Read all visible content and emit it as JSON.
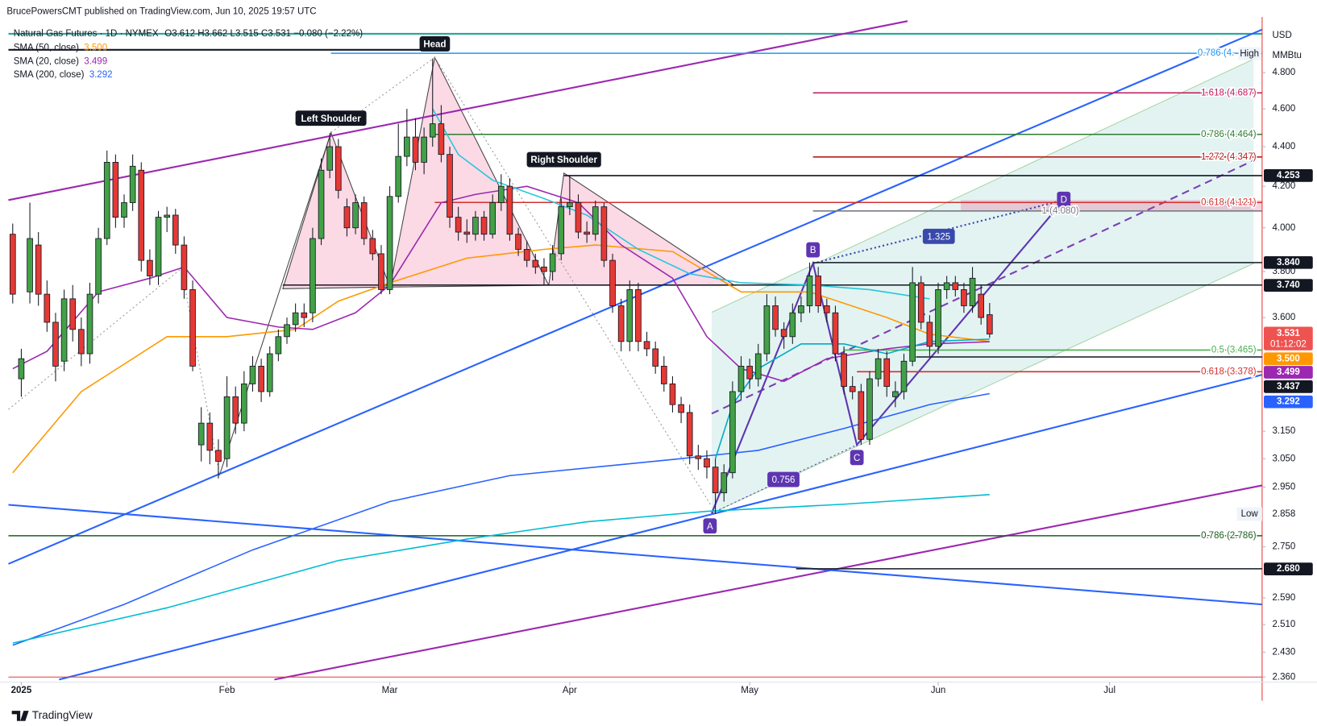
{
  "header": "BrucePowersCMT published on TradingView.com, Jun 10, 2025 19:57 UTC",
  "footer": "TradingView",
  "chart_data": {
    "type": "candlestick",
    "title": "Natural Gas Futures · 1D · NYMEX",
    "subtitle": "O3.612 H3.662 L3.515 C3.531 −0.080 (−2.22%)",
    "currency": "USD",
    "unit": "MMBtu",
    "log_scale": true,
    "grid": false,
    "legend": "top-left",
    "up_color": "#43a047",
    "down_color": "#e53935",
    "xlim": [
      -0.5,
      145.8
    ],
    "xticks": [
      {
        "value": 1,
        "label": "2025"
      },
      {
        "value": 25,
        "label": "Feb"
      },
      {
        "value": 44,
        "label": "Mar"
      },
      {
        "value": 65,
        "label": "Apr"
      },
      {
        "value": 86,
        "label": "May"
      },
      {
        "value": 108,
        "label": "Jun"
      },
      {
        "value": 128,
        "label": "Jul"
      }
    ],
    "ylim": [
      2.353,
      5.074
    ],
    "yticks": [
      {
        "value": 4.8,
        "label": "4.800"
      },
      {
        "value": 4.6,
        "label": "4.600"
      },
      {
        "value": 4.4,
        "label": "4.400"
      },
      {
        "value": 4.2,
        "label": "4.200"
      },
      {
        "value": 4,
        "label": "4.000"
      },
      {
        "value": 3.8,
        "label": "3.800"
      },
      {
        "value": 3.6,
        "label": "3.600"
      },
      {
        "value": 3.15,
        "label": "3.150"
      },
      {
        "value": 3.05,
        "label": "3.050"
      },
      {
        "value": 2.95,
        "label": "2.950"
      },
      {
        "value": 2.75,
        "label": "2.750"
      },
      {
        "value": 2.59,
        "label": "2.590"
      },
      {
        "value": 2.51,
        "label": "2.510"
      },
      {
        "value": 2.43,
        "label": "2.430"
      },
      {
        "value": 2.36,
        "label": "2.360"
      }
    ],
    "candles": [
      [
        3.97,
        4.02,
        3.66,
        3.7
      ],
      [
        3.35,
        3.47,
        3.28,
        3.43
      ],
      [
        3.71,
        4.12,
        3.66,
        3.95
      ],
      [
        3.92,
        3.98,
        3.65,
        3.7
      ],
      [
        3.7,
        3.76,
        3.54,
        3.58
      ],
      [
        3.58,
        3.62,
        3.34,
        3.4
      ],
      [
        3.42,
        3.72,
        3.38,
        3.68
      ],
      [
        3.68,
        3.74,
        3.5,
        3.55
      ],
      [
        3.55,
        3.6,
        3.4,
        3.45
      ],
      [
        3.45,
        3.75,
        3.41,
        3.7
      ],
      [
        3.7,
        4.0,
        3.66,
        3.95
      ],
      [
        3.95,
        4.38,
        3.92,
        4.32
      ],
      [
        4.32,
        4.36,
        4.0,
        4.05
      ],
      [
        4.05,
        4.16,
        4.0,
        4.12
      ],
      [
        4.12,
        4.36,
        4.08,
        4.3
      ],
      [
        4.28,
        4.32,
        3.8,
        3.85
      ],
      [
        3.85,
        3.9,
        3.74,
        3.78
      ],
      [
        3.78,
        4.08,
        3.74,
        4.05
      ],
      [
        4.05,
        4.1,
        3.98,
        4.06
      ],
      [
        4.06,
        4.09,
        3.88,
        3.92
      ],
      [
        3.92,
        3.96,
        3.68,
        3.72
      ],
      [
        3.72,
        3.76,
        3.38,
        3.4
      ],
      [
        3.1,
        3.24,
        3.04,
        3.18
      ],
      [
        3.18,
        3.22,
        3.03,
        3.08
      ],
      [
        3.08,
        3.12,
        2.98,
        3.04
      ],
      [
        3.05,
        3.36,
        3.02,
        3.28
      ],
      [
        3.28,
        3.32,
        3.14,
        3.18
      ],
      [
        3.18,
        3.38,
        3.15,
        3.33
      ],
      [
        3.33,
        3.44,
        3.3,
        3.4
      ],
      [
        3.4,
        3.43,
        3.26,
        3.3
      ],
      [
        3.3,
        3.48,
        3.28,
        3.45
      ],
      [
        3.45,
        3.55,
        3.42,
        3.52
      ],
      [
        3.52,
        3.6,
        3.49,
        3.57
      ],
      [
        3.57,
        3.66,
        3.54,
        3.62
      ],
      [
        3.62,
        3.66,
        3.56,
        3.6
      ],
      [
        3.62,
        4.0,
        3.58,
        3.95
      ],
      [
        3.95,
        4.34,
        3.92,
        4.28
      ],
      [
        4.28,
        4.47,
        4.24,
        4.4
      ],
      [
        4.4,
        4.44,
        4.14,
        4.18
      ],
      [
        4.1,
        4.14,
        3.96,
        4.0
      ],
      [
        4.0,
        4.16,
        3.97,
        4.12
      ],
      [
        4.12,
        4.15,
        3.92,
        3.95
      ],
      [
        3.95,
        3.99,
        3.85,
        3.88
      ],
      [
        3.88,
        3.92,
        3.7,
        3.72
      ],
      [
        3.72,
        4.2,
        3.7,
        4.15
      ],
      [
        4.15,
        4.52,
        4.12,
        4.35
      ],
      [
        4.35,
        4.6,
        4.3,
        4.45
      ],
      [
        4.45,
        4.55,
        4.28,
        4.32
      ],
      [
        4.32,
        4.5,
        4.26,
        4.45
      ],
      [
        4.45,
        4.88,
        4.4,
        4.52
      ],
      [
        4.52,
        4.62,
        4.32,
        4.36
      ],
      [
        4.36,
        4.4,
        4.0,
        4.05
      ],
      [
        4.05,
        4.1,
        3.94,
        3.98
      ],
      [
        3.98,
        4.04,
        3.93,
        3.97
      ],
      [
        3.97,
        4.08,
        3.94,
        4.05
      ],
      [
        4.05,
        4.08,
        3.94,
        3.97
      ],
      [
        3.97,
        4.16,
        3.95,
        4.12
      ],
      [
        4.12,
        4.26,
        4.08,
        4.2
      ],
      [
        4.2,
        4.24,
        3.94,
        3.97
      ],
      [
        3.97,
        4.0,
        3.87,
        3.9
      ],
      [
        3.9,
        3.94,
        3.82,
        3.85
      ],
      [
        3.85,
        3.88,
        3.79,
        3.82
      ],
      [
        3.82,
        3.86,
        3.74,
        3.8
      ],
      [
        3.8,
        3.92,
        3.76,
        3.88
      ],
      [
        3.88,
        4.14,
        3.85,
        4.1
      ],
      [
        4.1,
        4.25,
        4.06,
        4.12
      ],
      [
        4.12,
        4.16,
        3.95,
        3.98
      ],
      [
        3.98,
        4.03,
        3.93,
        3.97
      ],
      [
        3.97,
        4.13,
        3.94,
        4.1
      ],
      [
        4.1,
        4.12,
        3.82,
        3.85
      ],
      [
        3.85,
        3.88,
        3.62,
        3.65
      ],
      [
        3.65,
        3.68,
        3.46,
        3.5
      ],
      [
        3.5,
        3.76,
        3.46,
        3.72
      ],
      [
        3.72,
        3.75,
        3.46,
        3.5
      ],
      [
        3.5,
        3.54,
        3.44,
        3.47
      ],
      [
        3.47,
        3.5,
        3.37,
        3.4
      ],
      [
        3.4,
        3.44,
        3.3,
        3.33
      ],
      [
        3.33,
        3.36,
        3.22,
        3.25
      ],
      [
        3.25,
        3.28,
        3.18,
        3.22
      ],
      [
        3.22,
        3.25,
        3.03,
        3.06
      ],
      [
        3.06,
        3.1,
        3.01,
        3.05
      ],
      [
        3.05,
        3.08,
        2.98,
        3.02
      ],
      [
        3.02,
        3.05,
        2.858,
        2.93
      ],
      [
        2.93,
        3.03,
        2.9,
        3.0
      ],
      [
        3.0,
        3.34,
        2.98,
        3.3
      ],
      [
        3.3,
        3.44,
        3.27,
        3.4
      ],
      [
        3.4,
        3.43,
        3.31,
        3.35
      ],
      [
        3.35,
        3.49,
        3.32,
        3.45
      ],
      [
        3.45,
        3.7,
        3.42,
        3.65
      ],
      [
        3.65,
        3.69,
        3.52,
        3.55
      ],
      [
        3.55,
        3.58,
        3.47,
        3.52
      ],
      [
        3.52,
        3.66,
        3.49,
        3.62
      ],
      [
        3.62,
        3.69,
        3.58,
        3.65
      ],
      [
        3.65,
        3.84,
        3.62,
        3.78
      ],
      [
        3.78,
        3.82,
        3.62,
        3.65
      ],
      [
        3.65,
        3.68,
        3.58,
        3.62
      ],
      [
        3.62,
        3.65,
        3.42,
        3.45
      ],
      [
        3.45,
        3.48,
        3.29,
        3.32
      ],
      [
        3.32,
        3.36,
        3.27,
        3.3
      ],
      [
        3.3,
        3.33,
        3.1,
        3.12
      ],
      [
        3.12,
        3.38,
        3.1,
        3.35
      ],
      [
        3.35,
        3.47,
        3.32,
        3.43
      ],
      [
        3.43,
        3.46,
        3.28,
        3.32
      ],
      [
        3.28,
        3.34,
        3.24,
        3.3
      ],
      [
        3.3,
        3.45,
        3.27,
        3.42
      ],
      [
        3.42,
        3.82,
        3.4,
        3.75
      ],
      [
        3.75,
        3.78,
        3.55,
        3.58
      ],
      [
        3.58,
        3.61,
        3.44,
        3.48
      ],
      [
        3.48,
        3.75,
        3.45,
        3.72
      ],
      [
        3.72,
        3.78,
        3.68,
        3.75
      ],
      [
        3.75,
        3.78,
        3.69,
        3.72
      ],
      [
        3.72,
        3.75,
        3.62,
        3.65
      ],
      [
        3.65,
        3.82,
        3.62,
        3.77
      ],
      [
        3.7,
        3.74,
        3.57,
        3.6
      ],
      [
        3.612,
        3.662,
        3.515,
        3.531
      ]
    ],
    "series": [
      {
        "name": "SMA (50, close)",
        "legend_value": "3.500",
        "color": "#ff9800",
        "x": [
          0,
          8,
          18,
          25,
          33,
          38,
          44,
          53,
          62,
          68,
          77,
          85,
          93,
          102,
          107,
          114
        ],
        "values": [
          3.0,
          3.3,
          3.52,
          3.52,
          3.55,
          3.67,
          3.75,
          3.86,
          3.9,
          3.92,
          3.89,
          3.71,
          3.71,
          3.6,
          3.53,
          3.5
        ]
      },
      {
        "name": "SMA (20, close)",
        "legend_value": "3.499",
        "color": "#9c27b0",
        "x": [
          0,
          4,
          10,
          16,
          20,
          25,
          31,
          35,
          40,
          44,
          50,
          54,
          60,
          66,
          71,
          77,
          81,
          85,
          90,
          95,
          102,
          107,
          114
        ],
        "values": [
          3.39,
          3.46,
          3.71,
          3.77,
          3.82,
          3.6,
          3.56,
          3.55,
          3.62,
          3.74,
          4.12,
          4.16,
          4.2,
          4.12,
          3.92,
          3.77,
          3.52,
          3.39,
          3.34,
          3.43,
          3.47,
          3.49,
          3.499
        ]
      },
      {
        "name": "SMA (200, close)",
        "legend_value": "3.292",
        "color": "#2962ff",
        "x": [
          0,
          13,
          28,
          44,
          58,
          78,
          87,
          97,
          107,
          114
        ],
        "values": [
          2.45,
          2.57,
          2.74,
          2.9,
          2.99,
          3.05,
          3.08,
          3.16,
          3.25,
          3.292
        ]
      },
      {
        "color": "#00bcd4",
        "x": [
          0,
          18,
          38,
          53,
          67,
          81,
          97,
          114
        ],
        "values": [
          2.456,
          2.56,
          2.706,
          2.775,
          2.832,
          2.867,
          2.891,
          2.924
        ]
      },
      {
        "color": "#26c6da",
        "x": [
          49,
          52,
          56,
          62,
          67,
          73,
          79,
          85,
          93,
          100,
          107
        ],
        "values": [
          4.6,
          4.36,
          4.23,
          4.14,
          4.06,
          3.9,
          3.79,
          3.75,
          3.74,
          3.72,
          3.68
        ]
      },
      {
        "color": "#00acc1",
        "x": [
          82,
          84,
          87,
          92,
          97,
          102,
          107,
          114
        ],
        "values": [
          3.05,
          3.25,
          3.39,
          3.49,
          3.49,
          3.45,
          3.5,
          3.51
        ]
      }
    ],
    "levels": [
      {
        "label": "0.786 (4.",
        "value": 4.91,
        "color": "#2196f3"
      },
      {
        "label": "1.618 (4.687)",
        "value": 4.687,
        "color": "#c2185b"
      },
      {
        "label": "0.786 (4.464)",
        "value": 4.464,
        "color": "#2e7d32"
      },
      {
        "label": "1.272 (4.347)",
        "value": 4.347,
        "color": "#b71c1c"
      },
      {
        "label": "0.618 (4.121)",
        "value": 4.121,
        "color": "#d32f2f"
      },
      {
        "label": "1 (4.080)",
        "value": 4.08,
        "color": "#787b86"
      },
      {
        "label": "0.5 (3.465)",
        "value": 3.465,
        "color": "#4caf50"
      },
      {
        "label": "0.618 (3.378)",
        "value": 3.378,
        "color": "#d32f2f"
      },
      {
        "label": "0.786 (2.786)",
        "value": 2.786,
        "color": "#1b5e20"
      }
    ],
    "price_labels": [
      {
        "value": 4.253,
        "label": "4.253",
        "color": "#131722"
      },
      {
        "value": 3.84,
        "label": "3.840",
        "color": "#131722"
      },
      {
        "value": 3.74,
        "label": "3.740",
        "color": "#131722"
      },
      {
        "value": 3.531,
        "label": "3.531",
        "color": "#ef5350",
        "countdown": "01:12:02"
      },
      {
        "value": 3.5,
        "label": "3.500",
        "color": "#ff9800"
      },
      {
        "value": 3.499,
        "label": "3.499",
        "color": "#9c27b0"
      },
      {
        "value": 3.437,
        "label": "3.437",
        "color": "#131722"
      },
      {
        "value": 3.292,
        "label": "3.292",
        "color": "#2962ff"
      },
      {
        "value": 2.68,
        "label": "2.680",
        "color": "#131722"
      }
    ],
    "high_label": "High",
    "low_label": {
      "text": "Low",
      "value": 2.858
    },
    "patterns": [
      "Left Shoulder",
      "Head",
      "Right Shoulder"
    ],
    "points": [
      "A",
      "B",
      "C",
      "D"
    ],
    "ratios": [
      "0.756",
      "1.325"
    ]
  }
}
